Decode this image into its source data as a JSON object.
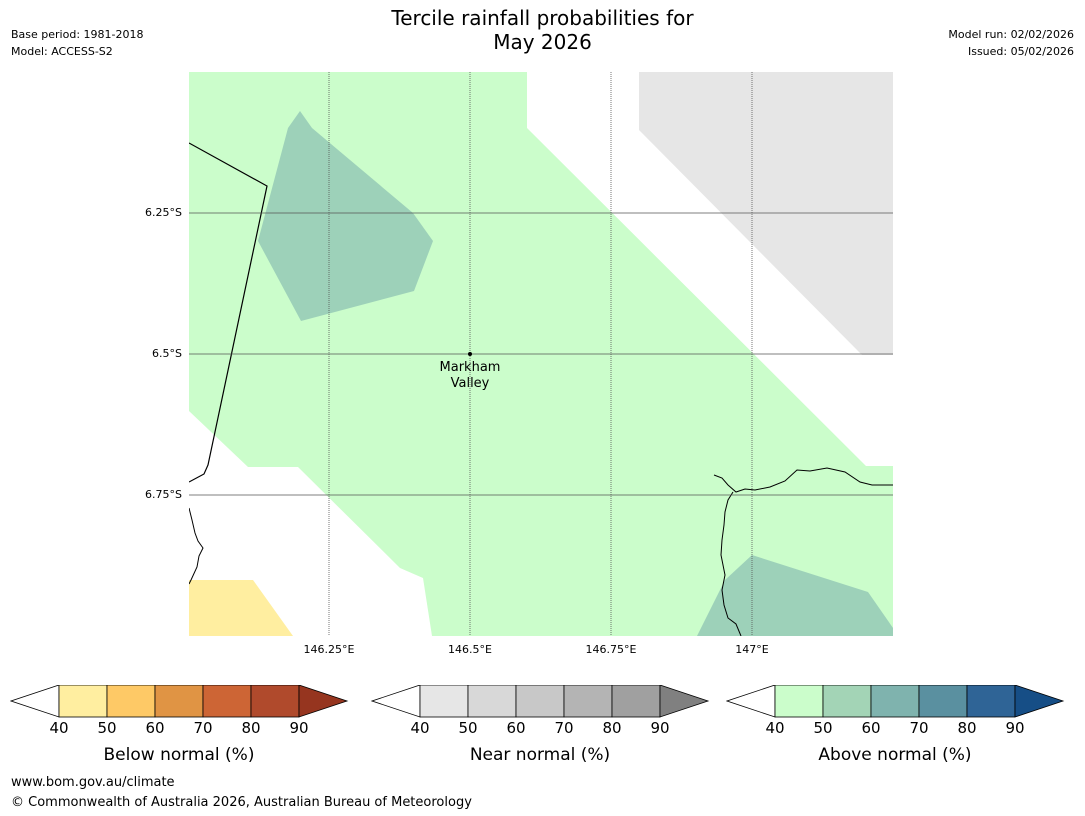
{
  "title_line1": "Tercile rainfall probabilities for",
  "title_line2": "May 2026",
  "meta": {
    "base_period": "Base period: 1981-2018",
    "model": "Model: ACCESS-S2",
    "model_run": "Model run: 02/02/2026",
    "issued": "Issued: 05/02/2026"
  },
  "latitudes": [
    "6.25°S",
    "6.5°S",
    "6.75°S"
  ],
  "longitudes": [
    "146.25°E",
    "146.5°E",
    "146.75°E",
    "147°E"
  ],
  "place": {
    "line1": "Markham",
    "line2": "Valley"
  },
  "colorbars": [
    {
      "label": "Below normal (%)",
      "ticks": [
        "40",
        "50",
        "60",
        "70",
        "80",
        "90"
      ],
      "colors": [
        "#ffeea0",
        "#fec966",
        "#e09444",
        "#cd6535",
        "#b04a2c"
      ],
      "extend_color": "#96351f"
    },
    {
      "label": "Near normal (%)",
      "ticks": [
        "40",
        "50",
        "60",
        "70",
        "80",
        "90"
      ],
      "colors": [
        "#e6e6e6",
        "#d8d8d8",
        "#c8c8c8",
        "#b4b4b4",
        "#a0a0a0"
      ],
      "extend_color": "#808080"
    },
    {
      "label": "Above normal (%)",
      "ticks": [
        "40",
        "50",
        "60",
        "70",
        "80",
        "90"
      ],
      "colors": [
        "#cbfdcb",
        "#a3d4b6",
        "#7fb3ae",
        "#5a90a0",
        "#2f6496"
      ],
      "extend_color": "#164e86"
    }
  ],
  "map_colors": {
    "above_40": "#cbfdcb",
    "above_50": "#9dd1b9",
    "near_40": "#e6e6e6",
    "below_40": "#ffeea0"
  },
  "footer": {
    "url": "www.bom.gov.au/climate",
    "copyright": "© Commonwealth of Australia 2026, Australian Bureau of Meteorology"
  }
}
